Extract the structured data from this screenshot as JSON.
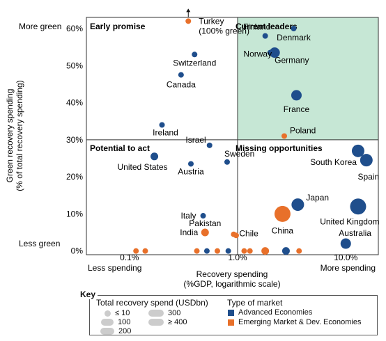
{
  "chart_data": {
    "type": "scatter",
    "xlabel": "Recovery spending\n(%GDP, logarithmic scale)",
    "ylabel": "Green recovery spending\n(% of total recovery spending)",
    "x_scale": "log",
    "xlim": [
      0.04,
      20
    ],
    "ylim": [
      -1,
      63
    ],
    "x_ticks": [
      "0.1%",
      "1.0%",
      "10.0%"
    ],
    "y_ticks": [
      "0%",
      "10%",
      "20%",
      "30%",
      "40%",
      "50%",
      "60%"
    ],
    "x_end_labels": [
      "Less spending",
      "More spending"
    ],
    "y_end_labels": [
      "More green",
      "Less green"
    ],
    "divider": {
      "x": 1.0,
      "y": 30
    },
    "quadrants": [
      "Early promise",
      "Current leaders",
      "Potential to act",
      "Missing opportunities"
    ],
    "colors": {
      "advanced": "#1f4e8c",
      "emerging": "#e8702a",
      "leaders_bg": "#c6e7d5"
    },
    "points": [
      {
        "label": "Turkey\n(100% green)",
        "x": 0.35,
        "y": 62,
        "type": "emerging",
        "size": 20,
        "arrow": true
      },
      {
        "label": "Switzerland",
        "x": 0.4,
        "y": 53,
        "type": "advanced",
        "size": 20
      },
      {
        "label": "Canada",
        "x": 0.3,
        "y": 47.5,
        "type": "advanced",
        "size": 20
      },
      {
        "label": "Ireland",
        "x": 0.2,
        "y": 34,
        "type": "advanced",
        "size": 20
      },
      {
        "label": "Finland",
        "x": 1.8,
        "y": 58,
        "type": "advanced",
        "size": 20
      },
      {
        "label": "Denmark",
        "x": 3.3,
        "y": 60,
        "type": "advanced",
        "size": 20
      },
      {
        "label": "Norway",
        "x": 2.0,
        "y": 53.5,
        "type": "advanced",
        "size": 20
      },
      {
        "label": "Germany",
        "x": 2.2,
        "y": 53.5,
        "type": "advanced",
        "size": 120
      },
      {
        "label": "France",
        "x": 3.5,
        "y": 42,
        "type": "advanced",
        "size": 120
      },
      {
        "label": "Poland",
        "x": 2.7,
        "y": 31,
        "type": "emerging",
        "size": 20
      },
      {
        "label": "Israel",
        "x": 0.55,
        "y": 28.5,
        "type": "advanced",
        "size": 20
      },
      {
        "label": "Sweden",
        "x": 0.8,
        "y": 24,
        "type": "advanced",
        "size": 20
      },
      {
        "label": "Austria",
        "x": 0.37,
        "y": 23.5,
        "type": "advanced",
        "size": 20
      },
      {
        "label": "United States",
        "x": 0.17,
        "y": 25.5,
        "type": "advanced",
        "size": 50
      },
      {
        "label": "South Korea",
        "x": 13,
        "y": 27,
        "type": "advanced",
        "size": 150
      },
      {
        "label": "Spain",
        "x": 15.5,
        "y": 24.5,
        "type": "advanced",
        "size": 150
      },
      {
        "label": "Japan",
        "x": 3.6,
        "y": 12.5,
        "type": "advanced",
        "size": 150
      },
      {
        "label": "China",
        "x": 2.6,
        "y": 10,
        "type": "emerging",
        "size": 400
      },
      {
        "label": "United Kingdom",
        "x": 13,
        "y": 12,
        "type": "advanced",
        "size": 300
      },
      {
        "label": "Australia",
        "x": 10,
        "y": 2,
        "type": "advanced",
        "size": 120
      },
      {
        "label": "Italy",
        "x": 0.48,
        "y": 9.5,
        "type": "advanced",
        "size": 20
      },
      {
        "label": "Pakistan",
        "x": 0.5,
        "y": 5,
        "type": "emerging",
        "size": 50
      },
      {
        "label": "India",
        "x": 0.5,
        "y": 5,
        "type": "emerging",
        "size": 20
      },
      {
        "label": "Chile",
        "x": 0.92,
        "y": 4.5,
        "type": "emerging",
        "size": 20
      },
      {
        "label": "",
        "x": 0.97,
        "y": 4.2,
        "type": "emerging",
        "size": 20
      },
      {
        "label": "",
        "x": 0.115,
        "y": 0,
        "type": "emerging",
        "size": 20
      },
      {
        "label": "",
        "x": 0.14,
        "y": 0,
        "type": "emerging",
        "size": 20
      },
      {
        "label": "",
        "x": 0.42,
        "y": 0,
        "type": "emerging",
        "size": 20
      },
      {
        "label": "",
        "x": 0.52,
        "y": 0,
        "type": "advanced",
        "size": 20
      },
      {
        "label": "",
        "x": 0.65,
        "y": 0,
        "type": "emerging",
        "size": 20
      },
      {
        "label": "",
        "x": 0.82,
        "y": 0,
        "type": "advanced",
        "size": 20
      },
      {
        "label": "",
        "x": 1.15,
        "y": 0,
        "type": "emerging",
        "size": 20
      },
      {
        "label": "",
        "x": 1.3,
        "y": 0,
        "type": "emerging",
        "size": 20
      },
      {
        "label": "",
        "x": 1.8,
        "y": 0,
        "type": "emerging",
        "size": 50
      },
      {
        "label": "",
        "x": 2.8,
        "y": 0,
        "type": "advanced",
        "size": 50
      },
      {
        "label": "",
        "x": 3.7,
        "y": 0,
        "type": "emerging",
        "size": 20
      }
    ]
  },
  "key": {
    "title": "Key",
    "size_title": "Total recovery spend (USDbn)",
    "size_items": [
      "≤ 10",
      "100",
      "200",
      "300",
      "≥ 400"
    ],
    "type_title": "Type of market",
    "type_items": [
      "Advanced Economies",
      "Emerging Market & Dev. Economies"
    ]
  }
}
